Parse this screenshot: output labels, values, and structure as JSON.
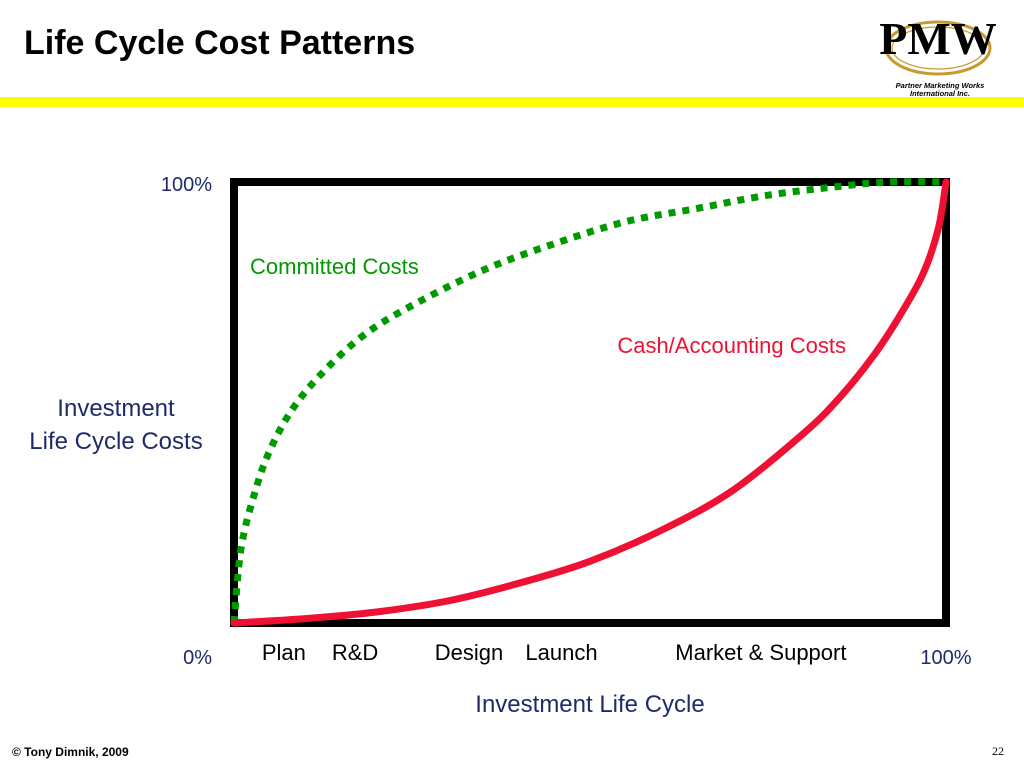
{
  "slide": {
    "title": "Life Cycle Cost Patterns",
    "page_number": "22",
    "copyright": "© Tony Dimnik, 2009"
  },
  "logo": {
    "text": "PMW",
    "company_line1": "Partner Marketing Works",
    "company_line2": "International Inc."
  },
  "colors": {
    "accent_rule": "#ffff00",
    "committed": "#009900",
    "cash": "#ee1133",
    "label_text": "#1f2a6b",
    "frame": "#000000"
  },
  "chart_data": {
    "type": "line",
    "title": "",
    "xlabel": "Investment Life Cycle",
    "ylabel": [
      "Investment",
      "Life Cycle Costs"
    ],
    "xlim": [
      0,
      100
    ],
    "ylim": [
      0,
      100
    ],
    "x_end_labels": [
      "0%",
      "100%"
    ],
    "y_top_label": "100%",
    "phases": [
      {
        "label": "Plan",
        "x": 7
      },
      {
        "label": "R&D",
        "x": 17
      },
      {
        "label": "Design",
        "x": 33
      },
      {
        "label": "Launch",
        "x": 46
      },
      {
        "label": "Market & Support",
        "x": 74
      }
    ],
    "grid": false,
    "series": [
      {
        "name": "Committed Costs",
        "style": "dotted",
        "x": [
          0,
          1,
          3,
          5,
          8,
          12,
          18,
          25,
          35,
          45,
          55,
          65,
          75,
          85,
          92,
          100
        ],
        "y": [
          0,
          17,
          30,
          39,
          48,
          56,
          65,
          72,
          80,
          86,
          91,
          94,
          97,
          99,
          100,
          100
        ]
      },
      {
        "name": "Cash/Accounting Costs",
        "style": "solid",
        "x": [
          0,
          10,
          20,
          30,
          40,
          50,
          60,
          70,
          80,
          85,
          90,
          94,
          97,
          99,
          100
        ],
        "y": [
          0,
          1,
          2.5,
          5,
          9,
          14,
          21,
          30,
          43,
          51,
          61,
          71,
          80,
          90,
          100
        ]
      }
    ]
  }
}
